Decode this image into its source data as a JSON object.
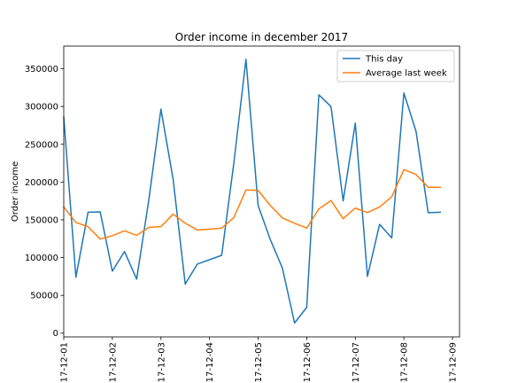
{
  "chart_data": {
    "type": "line",
    "title": "Order income in december 2017",
    "xlabel": "",
    "ylabel": "Order income",
    "xlim": [
      0,
      8.145
    ],
    "ylim": [
      -5000,
      380000
    ],
    "x_ticks": [
      0,
      1,
      2,
      3,
      4,
      5,
      6,
      7,
      8
    ],
    "x_tick_labels": [
      "17-12-01",
      "17-12-02",
      "17-12-03",
      "17-12-04",
      "17-12-05",
      "17-12-06",
      "17-12-07",
      "17-12-08",
      "17-12-09"
    ],
    "y_ticks": [
      0,
      50000,
      100000,
      150000,
      200000,
      250000,
      300000,
      350000
    ],
    "y_tick_labels": [
      "0",
      "50000",
      "100000",
      "150000",
      "200000",
      "250000",
      "300000",
      "350000"
    ],
    "grid": false,
    "legend_position": "top-right",
    "series": [
      {
        "name": "This day",
        "color": "#1f77b4",
        "x": [
          0,
          0.25,
          0.5,
          0.75,
          1,
          1.25,
          1.5,
          1.75,
          2,
          2.25,
          2.5,
          2.75,
          3.25,
          3.5,
          3.75,
          4,
          4.25,
          4.5,
          4.75,
          5,
          5.25,
          5.5,
          5.75,
          6,
          6.25,
          6.5,
          6.75,
          7,
          7.25,
          7.5,
          7.75
        ],
        "values": [
          286000,
          74000,
          160000,
          160500,
          82000,
          108000,
          71500,
          176000,
          296500,
          204000,
          65000,
          91500,
          103000,
          225000,
          362500,
          169000,
          124000,
          86000,
          13500,
          34000,
          315500,
          300000,
          175000,
          278000,
          75000,
          144000,
          126000,
          318000,
          267000,
          159500,
          160000
        ]
      },
      {
        "name": "Average last week",
        "color": "#ff7f0e",
        "x": [
          0,
          0.25,
          0.5,
          0.75,
          1,
          1.25,
          1.5,
          1.75,
          2,
          2.25,
          2.5,
          2.75,
          3.25,
          3.5,
          3.75,
          4,
          4.25,
          4.5,
          4.75,
          5,
          5.25,
          5.5,
          5.75,
          6,
          6.25,
          6.5,
          6.75,
          7,
          7.25,
          7.5,
          7.75
        ],
        "values": [
          167000,
          146500,
          141000,
          124500,
          129000,
          135500,
          129500,
          140000,
          141000,
          157500,
          145500,
          136500,
          139000,
          153000,
          189500,
          189000,
          169000,
          152500,
          145500,
          139000,
          164500,
          175500,
          151500,
          165500,
          159500,
          167000,
          180500,
          216500,
          210000,
          193000,
          193000
        ]
      }
    ]
  }
}
